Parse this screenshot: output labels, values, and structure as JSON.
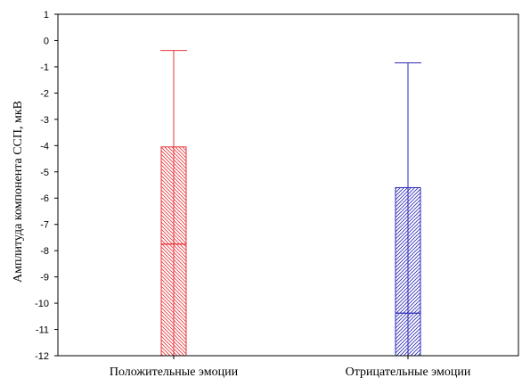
{
  "chart_data": {
    "type": "bar",
    "ylabel": "Амплитуда компонента ССП, мкВ",
    "ylim": [
      -12,
      1
    ],
    "yticks": [
      1,
      0,
      -1,
      -2,
      -3,
      -4,
      -5,
      -6,
      -7,
      -8,
      -9,
      -10,
      -11,
      -12
    ],
    "grid": false,
    "categories": [
      "Положительные эмоции",
      "Отрицательные эмоции"
    ],
    "series": [
      {
        "category": "Положительные эмоции",
        "color": "#e8363b",
        "median": -7.75,
        "q1": -12.0,
        "q3": -4.05,
        "whisker_low": -12.0,
        "whisker_high": -0.38
      },
      {
        "category": "Отрицательные эмоции",
        "color": "#2b2bb8",
        "median": -10.38,
        "q1": -12.0,
        "q3": -5.6,
        "whisker_low": -12.0,
        "whisker_high": -0.85
      }
    ]
  }
}
